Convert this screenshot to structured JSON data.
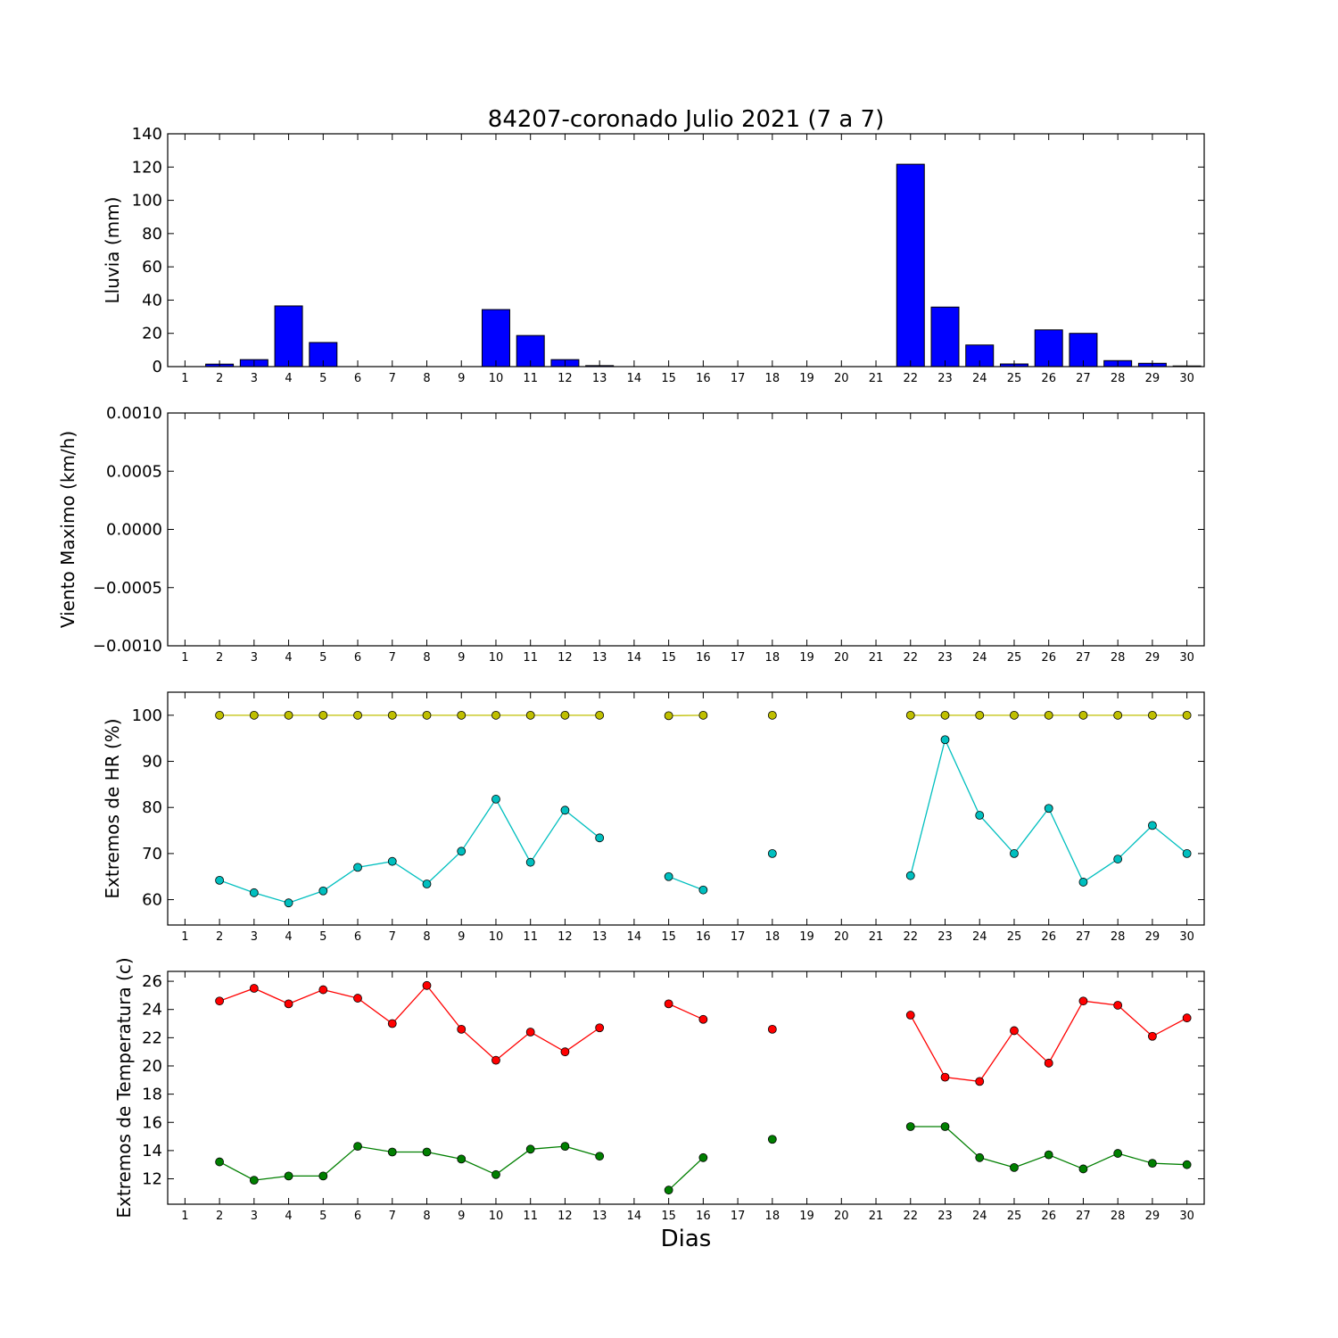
{
  "title": "84207-coronado Julio 2021  (7 a 7)",
  "chart_data": [
    {
      "type": "bar",
      "ylabel": "Lluvia (mm)",
      "ylim": [
        0,
        140
      ],
      "yticks": [
        "0",
        "20",
        "40",
        "60",
        "80",
        "100",
        "120",
        "140"
      ],
      "x": [
        1,
        2,
        3,
        4,
        5,
        6,
        7,
        8,
        9,
        10,
        11,
        12,
        13,
        14,
        15,
        16,
        17,
        18,
        19,
        20,
        21,
        22,
        23,
        24,
        25,
        26,
        27,
        28,
        29,
        30
      ],
      "values": [
        0,
        1.5,
        4.2,
        36.5,
        14.5,
        0,
        0,
        0,
        0,
        34.3,
        18.7,
        4.2,
        0.6,
        0,
        0,
        0,
        0,
        0,
        0,
        0,
        0,
        121.7,
        35.8,
        13,
        1.6,
        22.1,
        20,
        3.6,
        2,
        0.4
      ],
      "color": "#0000ff"
    },
    {
      "type": "line",
      "ylabel": "Viento Maximo (km/h)",
      "ylim": [
        -0.001,
        0.001
      ],
      "yticks": [
        "−0.0010",
        "−0.0005",
        "0.0000",
        "0.0005",
        "0.0010"
      ],
      "series": []
    },
    {
      "type": "line",
      "ylabel": "Extremos de HR (%)",
      "ylim": [
        54.5,
        105
      ],
      "yticks": [
        "60",
        "70",
        "80",
        "90",
        "100"
      ],
      "series": [
        {
          "color": "#bfbf00",
          "points": [
            [
              2,
              100
            ],
            [
              3,
              100
            ],
            [
              4,
              100
            ],
            [
              5,
              100
            ],
            [
              6,
              100
            ],
            [
              7,
              100
            ],
            [
              8,
              100
            ],
            [
              9,
              100
            ],
            [
              10,
              100
            ],
            [
              11,
              100
            ],
            [
              12,
              100
            ],
            [
              13,
              100
            ],
            null,
            [
              15,
              99.9
            ],
            [
              16,
              100
            ],
            null,
            [
              18,
              100
            ],
            null,
            [
              22,
              100
            ],
            [
              23,
              100
            ],
            [
              24,
              100
            ],
            [
              25,
              100
            ],
            [
              26,
              100
            ],
            [
              27,
              100
            ],
            [
              28,
              100
            ],
            [
              29,
              100
            ],
            [
              30,
              100
            ]
          ]
        },
        {
          "color": "#00bfbf",
          "points": [
            [
              2,
              64.2
            ],
            [
              3,
              61.5
            ],
            [
              4,
              59.3
            ],
            [
              5,
              61.9
            ],
            [
              6,
              67
            ],
            [
              7,
              68.3
            ],
            [
              8,
              63.4
            ],
            [
              9,
              70.5
            ],
            [
              10,
              81.8
            ],
            [
              11,
              68.1
            ],
            [
              12,
              79.4
            ],
            [
              13,
              73.4
            ],
            null,
            [
              15,
              65
            ],
            [
              16,
              62.1
            ],
            null,
            [
              18,
              70
            ],
            null,
            [
              22,
              65.2
            ],
            [
              23,
              94.7
            ],
            [
              24,
              78.3
            ],
            [
              25,
              70
            ],
            [
              26,
              79.8
            ],
            [
              27,
              63.8
            ],
            [
              28,
              68.8
            ],
            [
              29,
              76.1
            ],
            [
              30,
              70
            ]
          ]
        }
      ]
    },
    {
      "type": "line",
      "ylabel": "Extremos de Temperatura (c)",
      "xlabel": "Dias",
      "ylim": [
        10.2,
        26.7
      ],
      "yticks": [
        "12",
        "14",
        "16",
        "18",
        "20",
        "22",
        "24",
        "26"
      ],
      "series": [
        {
          "color": "#ff0000",
          "points": [
            [
              2,
              24.6
            ],
            [
              3,
              25.5
            ],
            [
              4,
              24.4
            ],
            [
              5,
              25.4
            ],
            [
              6,
              24.8
            ],
            [
              7,
              23
            ],
            [
              8,
              25.7
            ],
            [
              9,
              22.6
            ],
            [
              10,
              20.4
            ],
            [
              11,
              22.4
            ],
            [
              12,
              21
            ],
            [
              13,
              22.7
            ],
            null,
            [
              15,
              24.4
            ],
            [
              16,
              23.3
            ],
            null,
            [
              18,
              22.6
            ],
            null,
            [
              22,
              23.6
            ],
            [
              23,
              19.2
            ],
            [
              24,
              18.9
            ],
            [
              25,
              22.5
            ],
            [
              26,
              20.2
            ],
            [
              27,
              24.6
            ],
            [
              28,
              24.3
            ],
            [
              29,
              22.1
            ],
            [
              30,
              23.4
            ]
          ]
        },
        {
          "color": "#007f00",
          "points": [
            [
              2,
              13.2
            ],
            [
              3,
              11.9
            ],
            [
              4,
              12.2
            ],
            [
              5,
              12.2
            ],
            [
              6,
              14.3
            ],
            [
              7,
              13.9
            ],
            [
              8,
              13.9
            ],
            [
              9,
              13.4
            ],
            [
              10,
              12.3
            ],
            [
              11,
              14.1
            ],
            [
              12,
              14.3
            ],
            [
              13,
              13.6
            ],
            null,
            [
              15,
              11.2
            ],
            [
              16,
              13.5
            ],
            null,
            [
              18,
              14.8
            ],
            null,
            [
              22,
              15.7
            ],
            [
              23,
              15.7
            ],
            [
              24,
              13.5
            ],
            [
              25,
              12.8
            ],
            [
              26,
              13.7
            ],
            [
              27,
              12.7
            ],
            [
              28,
              13.8
            ],
            [
              29,
              13.1
            ],
            [
              30,
              13
            ]
          ]
        }
      ]
    }
  ],
  "xtick_labels": [
    "1",
    "2",
    "3",
    "4",
    "5",
    "6",
    "7",
    "8",
    "9",
    "10",
    "11",
    "12",
    "13",
    "14",
    "15",
    "16",
    "17",
    "18",
    "19",
    "20",
    "21",
    "22",
    "23",
    "24",
    "25",
    "26",
    "27",
    "28",
    "29",
    "30"
  ]
}
